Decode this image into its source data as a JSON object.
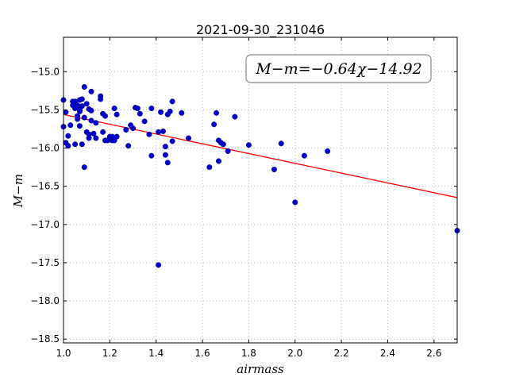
{
  "chart_data": {
    "type": "scatter",
    "title": "2021-09-30_231046",
    "xlabel": "airmass",
    "ylabel": "M−m",
    "xlim": [
      1.0,
      2.7
    ],
    "ylim": [
      -18.55,
      -14.55
    ],
    "x_ticks": [
      1.0,
      1.2,
      1.4,
      1.6,
      1.8,
      2.0,
      2.2,
      2.4,
      2.6
    ],
    "x_tick_labels": [
      "1.0",
      "1.2",
      "1.4",
      "1.6",
      "1.8",
      "2.0",
      "2.2",
      "2.4",
      "2.6"
    ],
    "y_ticks": [
      -15.0,
      -15.5,
      -16.0,
      -16.5,
      -17.0,
      -17.5,
      -18.0,
      -18.5
    ],
    "y_tick_labels": [
      "−15.0",
      "−15.5",
      "−16.0",
      "−16.5",
      "−17.0",
      "−17.5",
      "−18.0",
      "−18.5"
    ],
    "grid": true,
    "annotation": "M−m=−0.64χ−14.92",
    "fit": {
      "slope": -0.64,
      "intercept": -14.92,
      "color": "#ff0000"
    },
    "point_color": "#0000cc",
    "x": [
      1.0,
      1.0,
      1.01,
      1.01,
      1.02,
      1.02,
      1.03,
      1.04,
      1.04,
      1.05,
      1.05,
      1.05,
      1.06,
      1.06,
      1.06,
      1.07,
      1.07,
      1.07,
      1.07,
      1.08,
      1.08,
      1.08,
      1.09,
      1.09,
      1.09,
      1.1,
      1.1,
      1.11,
      1.11,
      1.11,
      1.12,
      1.12,
      1.12,
      1.13,
      1.14,
      1.14,
      1.16,
      1.16,
      1.17,
      1.17,
      1.18,
      1.18,
      1.19,
      1.2,
      1.2,
      1.21,
      1.21,
      1.22,
      1.22,
      1.23,
      1.23,
      1.27,
      1.28,
      1.29,
      1.3,
      1.31,
      1.32,
      1.33,
      1.35,
      1.37,
      1.38,
      1.38,
      1.41,
      1.41,
      1.42,
      1.43,
      1.44,
      1.44,
      1.45,
      1.45,
      1.46,
      1.47,
      1.47,
      1.51,
      1.54,
      1.63,
      1.65,
      1.66,
      1.67,
      1.67,
      1.68,
      1.69,
      1.71,
      1.74,
      1.8,
      1.91,
      1.94,
      2.0,
      2.04,
      2.14,
      2.7
    ],
    "y": [
      -15.37,
      -15.72,
      -15.53,
      -15.93,
      -15.97,
      -15.84,
      -15.7,
      -15.44,
      -15.39,
      -15.48,
      -15.39,
      -15.95,
      -15.62,
      -15.58,
      -15.44,
      -15.52,
      -15.71,
      -15.37,
      -15.5,
      -15.45,
      -15.36,
      -15.95,
      -15.2,
      -16.25,
      -15.6,
      -15.42,
      -15.79,
      -15.82,
      -15.87,
      -15.49,
      -15.26,
      -15.51,
      -15.64,
      -15.81,
      -15.87,
      -15.67,
      -15.32,
      -15.36,
      -15.55,
      -15.79,
      -15.9,
      -15.58,
      -15.9,
      -15.88,
      -15.85,
      -15.9,
      -15.85,
      -15.48,
      -15.9,
      -15.56,
      -15.85,
      -15.76,
      -15.97,
      -15.7,
      -15.74,
      -15.47,
      -15.48,
      -15.55,
      -15.65,
      -15.82,
      -15.48,
      -16.1,
      -15.79,
      -17.53,
      -15.53,
      -15.78,
      -15.98,
      -16.09,
      -16.19,
      -15.56,
      -15.52,
      -15.39,
      -15.91,
      -15.54,
      -15.87,
      -16.25,
      -15.69,
      -15.54,
      -15.9,
      -16.17,
      -15.93,
      -15.95,
      -16.04,
      -15.59,
      -15.96,
      -16.28,
      -15.94,
      -16.71,
      -16.1,
      -16.04,
      -17.08
    ]
  }
}
